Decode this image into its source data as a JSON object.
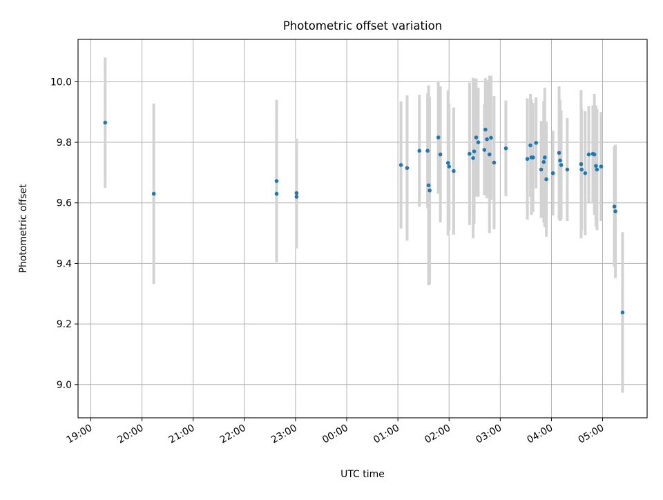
{
  "chart_data": {
    "type": "scatter",
    "title": "Photometric offset variation",
    "xlabel": "UTC time",
    "ylabel": "Photometric offset",
    "grid": true,
    "xlim": [
      -5.25,
      5.87
    ],
    "ylim": [
      8.89,
      10.14
    ],
    "yticks": [
      9.0,
      9.2,
      9.4,
      9.6,
      9.8,
      10.0
    ],
    "ytick_labels": [
      "9.0",
      "9.2",
      "9.4",
      "9.6",
      "9.8",
      "10.0"
    ],
    "xticks": [
      -5,
      -4,
      -3,
      -2,
      -1,
      0,
      1,
      2,
      3,
      4,
      5
    ],
    "xtick_labels": [
      "19:00",
      "20:00",
      "21:00",
      "22:00",
      "23:00",
      "00:00",
      "01:00",
      "02:00",
      "03:00",
      "04:00",
      "05:00"
    ],
    "colors": {
      "marker": "#1f77b4",
      "errorbar": "#d3d3d3",
      "grid": "#b0b0b0"
    },
    "series": [
      {
        "x": [
          -4.72,
          -3.77,
          -1.37,
          -1.37,
          -0.98,
          -0.98,
          1.06,
          1.18,
          1.42,
          1.58,
          1.6,
          1.62,
          1.79,
          1.83,
          1.98,
          2.0,
          2.09,
          2.4,
          2.47,
          2.49,
          2.53,
          2.57,
          2.69,
          2.71,
          2.74,
          2.79,
          2.82,
          2.88,
          3.11,
          3.53,
          3.59,
          3.61,
          3.64,
          3.7,
          3.8,
          3.85,
          3.87,
          3.9,
          4.03,
          4.15,
          4.17,
          4.19,
          4.31,
          4.58,
          4.59,
          4.66,
          4.73,
          4.81,
          4.84,
          4.87,
          4.89,
          4.97,
          5.23,
          5.25,
          5.39
        ],
        "y": [
          9.865,
          9.63,
          9.672,
          9.63,
          9.62,
          9.632,
          9.725,
          9.715,
          9.772,
          9.772,
          9.658,
          9.641,
          9.816,
          9.76,
          9.732,
          9.72,
          9.705,
          9.762,
          9.748,
          9.77,
          9.816,
          9.8,
          9.775,
          9.842,
          9.81,
          9.76,
          9.815,
          9.733,
          9.78,
          9.745,
          9.79,
          9.75,
          9.75,
          9.798,
          9.71,
          9.735,
          9.75,
          9.678,
          9.698,
          9.765,
          9.74,
          9.725,
          9.71,
          9.728,
          9.71,
          9.698,
          9.76,
          9.762,
          9.76,
          9.722,
          9.71,
          9.72,
          9.588,
          9.572,
          9.238
        ],
        "yerr": [
          0.215,
          0.298,
          0.268,
          0.21,
          0.17,
          0.18,
          0.21,
          0.24,
          0.185,
          0.19,
          0.33,
          0.31,
          0.186,
          0.225,
          0.24,
          0.21,
          0.21,
          0.235,
          0.265,
          0.24,
          0.195,
          0.18,
          0.15,
          0.17,
          0.195,
          0.26,
          0.205,
          0.22,
          0.158,
          0.2,
          0.17,
          0.19,
          0.18,
          0.15,
          0.16,
          0.2,
          0.23,
          0.19,
          0.14,
          0.22,
          0.2,
          0.18,
          0.17,
          0.245,
          0.2,
          0.205,
          0.16,
          0.16,
          0.2,
          0.2,
          0.2,
          0.18,
          0.2,
          0.22,
          0.265
        ]
      }
    ]
  }
}
